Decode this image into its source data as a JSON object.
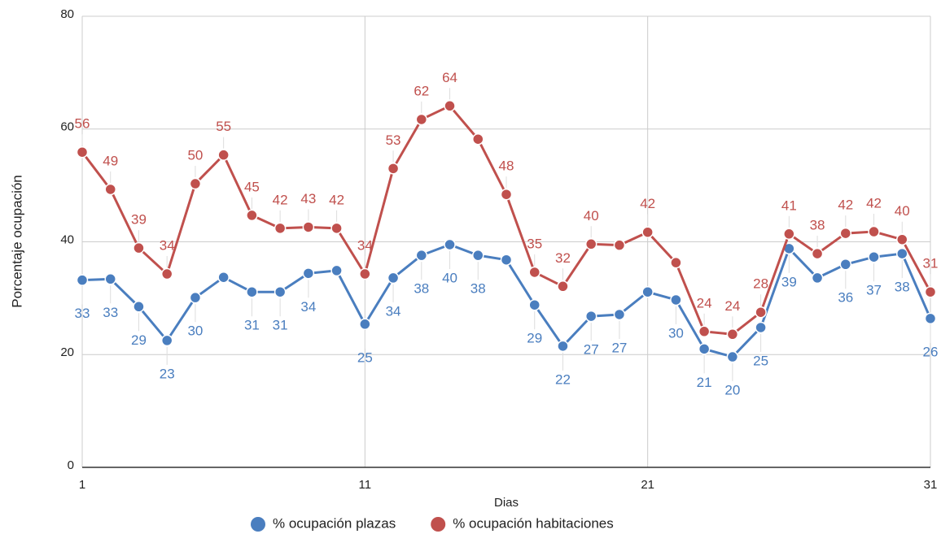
{
  "chart_data": {
    "type": "line",
    "x_label": "Dias",
    "y_label": "Porcentaje ocupación",
    "x": [
      1,
      2,
      3,
      4,
      5,
      6,
      7,
      8,
      9,
      10,
      11,
      12,
      13,
      14,
      15,
      16,
      17,
      18,
      19,
      20,
      21,
      22,
      23,
      24,
      25,
      26,
      27,
      28,
      29,
      30,
      31
    ],
    "xlim": [
      1,
      31
    ],
    "xticks": [
      1,
      11,
      21,
      31
    ],
    "ylim": [
      0,
      80
    ],
    "yticks": [
      0,
      20,
      40,
      60,
      80
    ],
    "grid": true,
    "legend": "bottom",
    "series": [
      {
        "name": "% ocupación plazas",
        "color": "#4a7ebf",
        "values": [
          33.2,
          33.4,
          28.5,
          22.5,
          30.1,
          33.7,
          31.1,
          31.1,
          34.4,
          34.9,
          25.4,
          33.6,
          37.6,
          39.5,
          37.6,
          36.8,
          28.8,
          21.5,
          26.8,
          27.1,
          31.1,
          29.7,
          21.0,
          19.6,
          24.8,
          38.8,
          33.6,
          36.0,
          37.3,
          37.9,
          26.4
        ],
        "value_labels": [
          "33",
          "33",
          "29",
          "23",
          "30",
          null,
          "31",
          "31",
          "34",
          null,
          "25",
          "34",
          "38",
          "40",
          "38",
          null,
          "29",
          "22",
          "27",
          "27",
          null,
          "30",
          "21",
          "20",
          "25",
          "39",
          null,
          "36",
          "37",
          "38",
          "26"
        ]
      },
      {
        "name": "% ocupación habitaciones",
        "color": "#c0504d",
        "values": [
          55.9,
          49.3,
          38.9,
          34.3,
          50.3,
          55.4,
          44.7,
          42.4,
          42.6,
          42.4,
          34.3,
          53.0,
          61.7,
          64.1,
          58.2,
          48.4,
          34.6,
          32.1,
          39.6,
          39.4,
          41.7,
          36.3,
          24.1,
          23.6,
          27.5,
          41.4,
          37.9,
          41.5,
          41.8,
          40.4,
          31.1
        ],
        "value_labels": [
          "56",
          "49",
          "39",
          "34",
          "50",
          "55",
          "45",
          "42",
          "43",
          "42",
          "34",
          "53",
          "62",
          "64",
          null,
          "48",
          "35",
          "32",
          "40",
          null,
          "42",
          null,
          "24",
          "24",
          "28",
          "41",
          "38",
          "42",
          "42",
          "40",
          "31"
        ]
      }
    ]
  }
}
